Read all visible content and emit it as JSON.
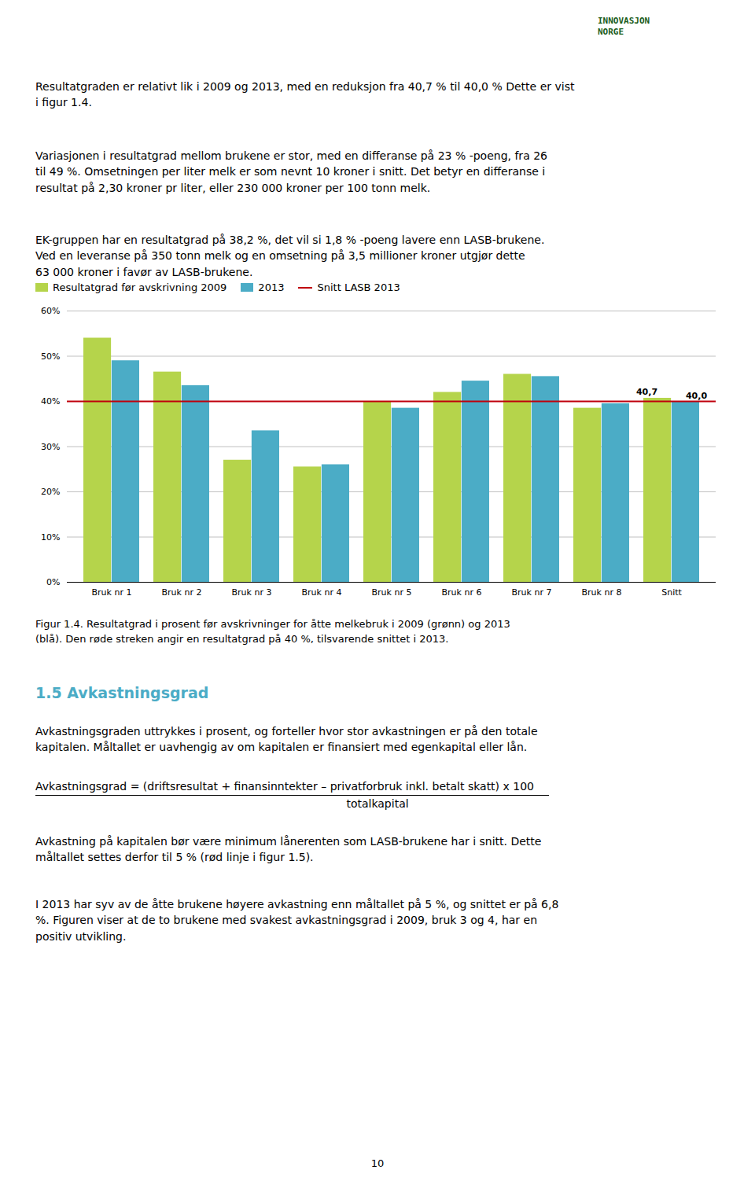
{
  "chart_data": {
    "type": "bar",
    "categories": [
      "Bruk nr 1",
      "Bruk nr 2",
      "Bruk nr 3",
      "Bruk nr 4",
      "Bruk nr 5",
      "Bruk nr 6",
      "Bruk nr 7",
      "Bruk nr 8",
      "Snitt"
    ],
    "series": [
      {
        "name": "Resultatgrad før avskrivning 2009",
        "color": "#b5d44b",
        "values": [
          54.0,
          46.5,
          27.0,
          25.5,
          40.0,
          42.0,
          46.0,
          38.5,
          40.7
        ]
      },
      {
        "name": "2013",
        "color": "#4bacc6",
        "values": [
          49.0,
          43.5,
          33.5,
          26.0,
          38.5,
          44.5,
          45.5,
          39.5,
          40.0
        ]
      }
    ],
    "hlines": [
      {
        "name": "Snitt LASB 2013",
        "color": "#c0000c",
        "value": 40.0
      }
    ],
    "annotations": [
      {
        "text": "40,7",
        "category": "Snitt",
        "series": "Resultatgrad før avskrivning 2009",
        "value": 40.7
      },
      {
        "text": "40,0",
        "category": "Snitt",
        "series": "2013",
        "value": 40.0
      }
    ],
    "caption": "Figur 1.4. Resultatgrad i prosent før avskrivninger for åtte melkebruk i 2009 (grønn) og 2013\n(blå). Den røde streken angir en resultatgrad på 40 %, tilsvarende snittet i 2013.",
    "ylim": [
      0,
      60
    ],
    "yticks": [
      {
        "value": 0,
        "label": "0%"
      },
      {
        "value": 10,
        "label": "10%"
      },
      {
        "value": 20,
        "label": "20%"
      },
      {
        "value": 30,
        "label": "30%"
      },
      {
        "value": 40,
        "label": "40%"
      },
      {
        "value": 50,
        "label": "50%"
      },
      {
        "value": 60,
        "label": "60%"
      }
    ],
    "grid": true,
    "legend": "upper left"
  },
  "page": {
    "logo": "INNOVASJON\nNORGE",
    "paragraphs_before": [
      "Resultatgraden er relativt lik i 2009 og 2013, med en reduksjon fra 40,7 % til 40,0 % Dette er vist\ni figur 1.4.",
      "Variasjonen i resultatgrad mellom brukene er stor, med en differanse på 23 % -poeng, fra 26\ntil 49 %. Omsetningen per liter melk er som nevnt 10 kroner i snitt. Det betyr en differanse i\nresultat på 2,30 kroner pr liter, eller 230 000 kroner per 100 tonn melk.",
      "EK-gruppen har en resultatgrad på 38,2 %, det vil si 1,8 % -poeng lavere enn LASB-brukene.\nVed en leveranse på 350 tonn melk og en omsetning på 3,5 millioner kroner utgjør dette\n63 000 kroner i favør av LASB-brukene."
    ],
    "section_title": "1.5 Avkastningsgrad",
    "section_color": "#4bacc6",
    "section_paragraph1": "Avkastningsgraden uttrykkes i prosent, og forteller hvor stor avkastningen er på den totale\nkapitalen. Måltallet er uavhengig av om kapitalen er finansiert med egenkapital eller lån.",
    "formula_numerator": "Avkastningsgrad = (driftsresultat + finansinntekter – privatforbruk inkl. betalt skatt) x 100",
    "formula_denominator": "totalkapital",
    "section_paragraphs_after": [
      "Avkastning på kapitalen bør være minimum lånerenten som LASB-brukene har i snitt. Dette\nmåltallet settes derfor til 5 % (rød linje i figur 1.5).",
      "I 2013 har syv av de åtte brukene høyere avkastning enn måltallet på 5 %, og snittet er på 6,8\n%. Figuren viser at de to brukene med svakest avkastningsgrad i 2009, bruk 3 og 4, har en\npositiv utvikling."
    ],
    "page_number": "10"
  }
}
